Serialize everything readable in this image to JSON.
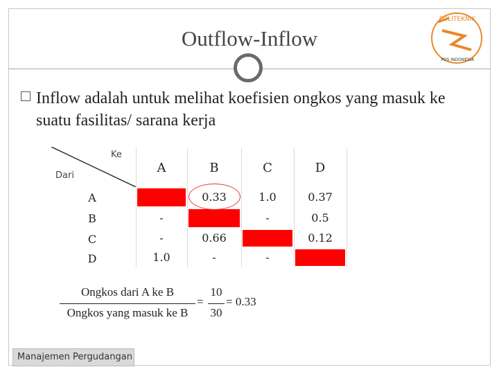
{
  "slide": {
    "title": "Outflow-Inflow",
    "bullet": "Inflow adalah untuk melihat koefisien ongkos yang masuk ke suatu fasilitas/ sarana kerja",
    "footer": "Manajemen Pergudangan"
  },
  "logo": {
    "text": "POLITEKNIK POS INDONESIA",
    "colors": {
      "main": "#e8892a",
      "accent": "#333333"
    }
  },
  "table": {
    "corner_to": "Ke",
    "corner_from": "Dari",
    "columns": [
      "A",
      "B",
      "C",
      "D"
    ],
    "rows": [
      {
        "label": "A",
        "cells": [
          "",
          "0.33",
          "1.0",
          "0.37"
        ],
        "red": [
          true,
          false,
          false,
          false
        ]
      },
      {
        "label": "B",
        "cells": [
          "-",
          "",
          "-",
          "0.5"
        ],
        "red": [
          false,
          true,
          false,
          false
        ]
      },
      {
        "label": "C",
        "cells": [
          "-",
          "0.66",
          "",
          "0.12"
        ],
        "red": [
          false,
          false,
          true,
          false
        ]
      },
      {
        "label": "D",
        "cells": [
          "1.0",
          "-",
          "-",
          ""
        ],
        "red": [
          false,
          false,
          false,
          true
        ]
      }
    ],
    "highlight_color": "#ff0000"
  },
  "formula": {
    "numerator": "Ongkos dari A ke B",
    "denominator": "Ongkos yang masuk ke B",
    "equals": "=",
    "num_value": "10",
    "den_value": "30",
    "result": "= 0.33"
  }
}
